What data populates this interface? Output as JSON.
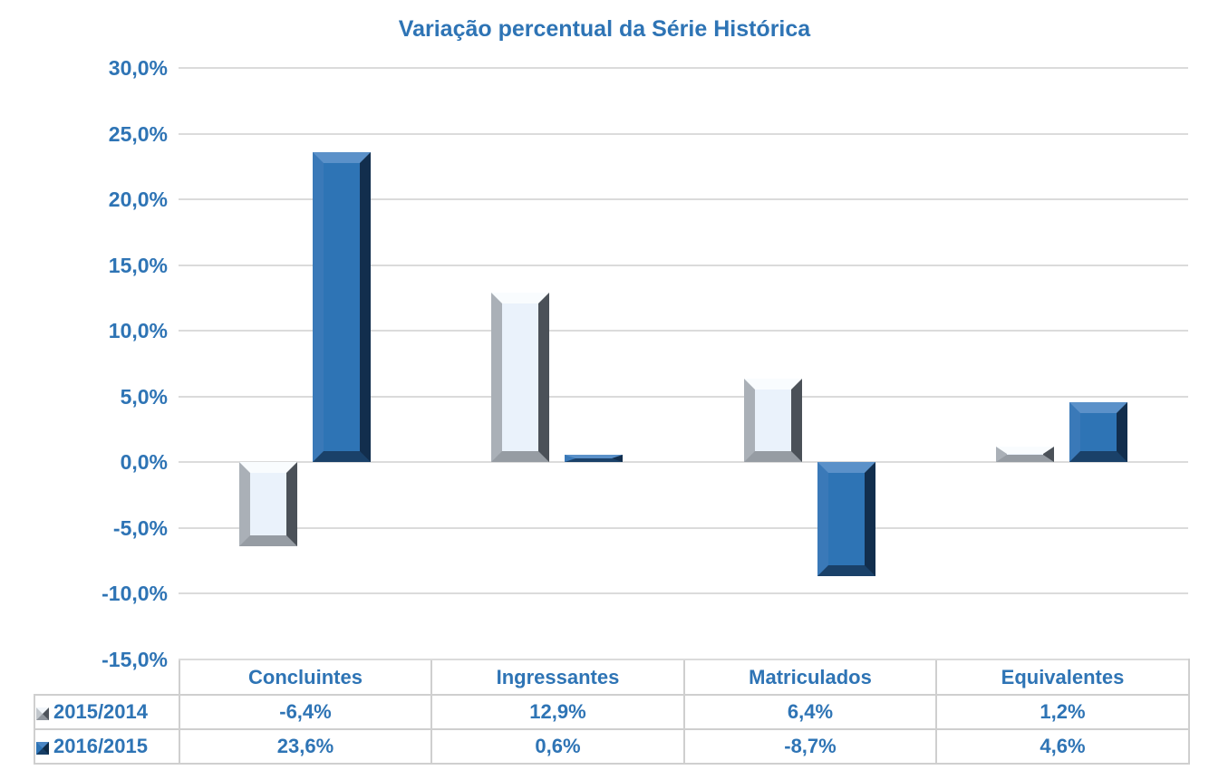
{
  "chart_data": {
    "type": "bar",
    "title": "Variação percentual da Série Histórica",
    "categories": [
      "Concluintes",
      "Ingressantes",
      "Matriculados",
      "Equivalentes"
    ],
    "series": [
      {
        "name": "2015/2014",
        "values": [
          -6.4,
          12.9,
          6.4,
          1.2
        ],
        "display": [
          "-6,4%",
          "12,9%",
          "6,4%",
          "1,2%"
        ]
      },
      {
        "name": "2016/2015",
        "values": [
          23.6,
          0.6,
          -8.7,
          4.6
        ],
        "display": [
          "23,6%",
          "0,6%",
          "-8,7%",
          "4,6%"
        ]
      }
    ],
    "y_axis": {
      "min": -15,
      "max": 30,
      "step": 5,
      "tick_labels": [
        "30,0%",
        "25,0%",
        "20,0%",
        "15,0%",
        "10,0%",
        "5,0%",
        "0,0%",
        "-5,0%",
        "-10,0%",
        "-15,0%"
      ]
    },
    "grid": true,
    "legend_position": "table-left",
    "colors": {
      "series_2015_2014_fill": "#EAF2FB",
      "series_2016_2015_fill": "#2E74B5",
      "text": "#2E74B5",
      "gridline": "#DBDBDB",
      "table_border": "#CFCFCF",
      "background": "#FFFFFF"
    }
  }
}
